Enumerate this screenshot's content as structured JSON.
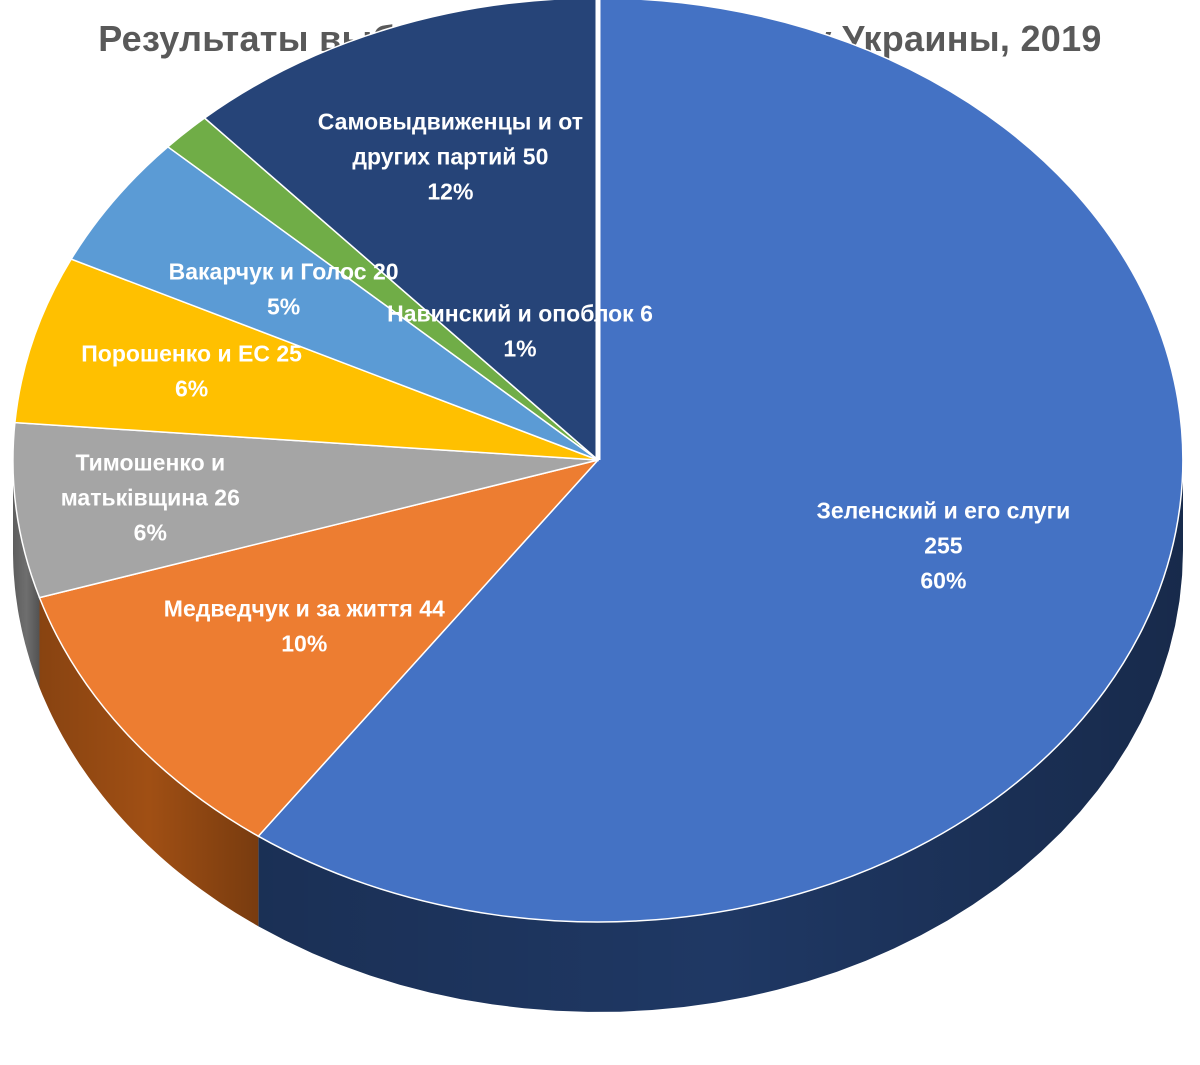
{
  "chart_data": {
    "type": "pie",
    "title": "Результаты выборов в Верховную Раду Украины, 2019",
    "slices": [
      {
        "lines": [
          "Зеленский и его слуги",
          "255",
          "60%"
        ],
        "value": 255,
        "percent": 60,
        "color": "#4472C4",
        "side": "#1F3864"
      },
      {
        "lines": [
          "Медведчук и за життя 44",
          "10%"
        ],
        "value": 44,
        "percent": 10,
        "color": "#ED7D31",
        "side": "#A04F14"
      },
      {
        "lines": [
          "Тимошенко и",
          "матьківщина 26",
          "6%"
        ],
        "value": 26,
        "percent": 6,
        "color": "#A5A5A5",
        "side": "#6E6E6E"
      },
      {
        "lines": [
          "Порошенко и ЕС 25",
          "6%"
        ],
        "value": 25,
        "percent": 6,
        "color": "#FFC000",
        "side": "#B38600"
      },
      {
        "lines": [
          "Вакарчук и Голос 20",
          "5%"
        ],
        "value": 20,
        "percent": 5,
        "color": "#5B9BD5",
        "side": "#2E6AA1"
      },
      {
        "lines": [
          "Навинский и опоблок 6",
          "1%"
        ],
        "value": 6,
        "percent": 1,
        "color": "#70AD47",
        "side": "#4A7A2C"
      },
      {
        "lines": [
          "Самовыдвиженцы и от",
          "других партий 50",
          "12%"
        ],
        "value": 50,
        "percent": 12,
        "color": "#264478",
        "side": "#14264A"
      }
    ]
  }
}
